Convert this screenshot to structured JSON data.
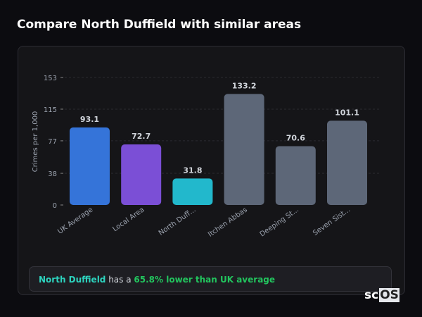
{
  "title": "Compare North Duffield with similar areas",
  "chart_data": {
    "type": "bar",
    "ylabel": "Crimes per 1,000",
    "ylim": [
      0,
      153
    ],
    "yticks": [
      0,
      38,
      77,
      115,
      153
    ],
    "grid": true,
    "categories": [
      "UK Average",
      "Local Area",
      "North Duff...",
      "Itchen Abbas",
      "Deeping St...",
      "Seven Sist..."
    ],
    "values": [
      93.1,
      72.7,
      31.8,
      133.2,
      70.6,
      101.1
    ],
    "value_labels": [
      "93.1",
      "72.7",
      "31.8",
      "133.2",
      "70.6",
      "101.1"
    ],
    "colors": [
      "#3574d9",
      "#7b4fd6",
      "#22b8cc",
      "#5d6778",
      "#5d6778",
      "#5d6778"
    ]
  },
  "footer": {
    "area": "North Duffield",
    "mid": " has a ",
    "highlight": "65.8% lower than UK average"
  },
  "logo": {
    "text_a": "sc",
    "text_b": "OS"
  }
}
